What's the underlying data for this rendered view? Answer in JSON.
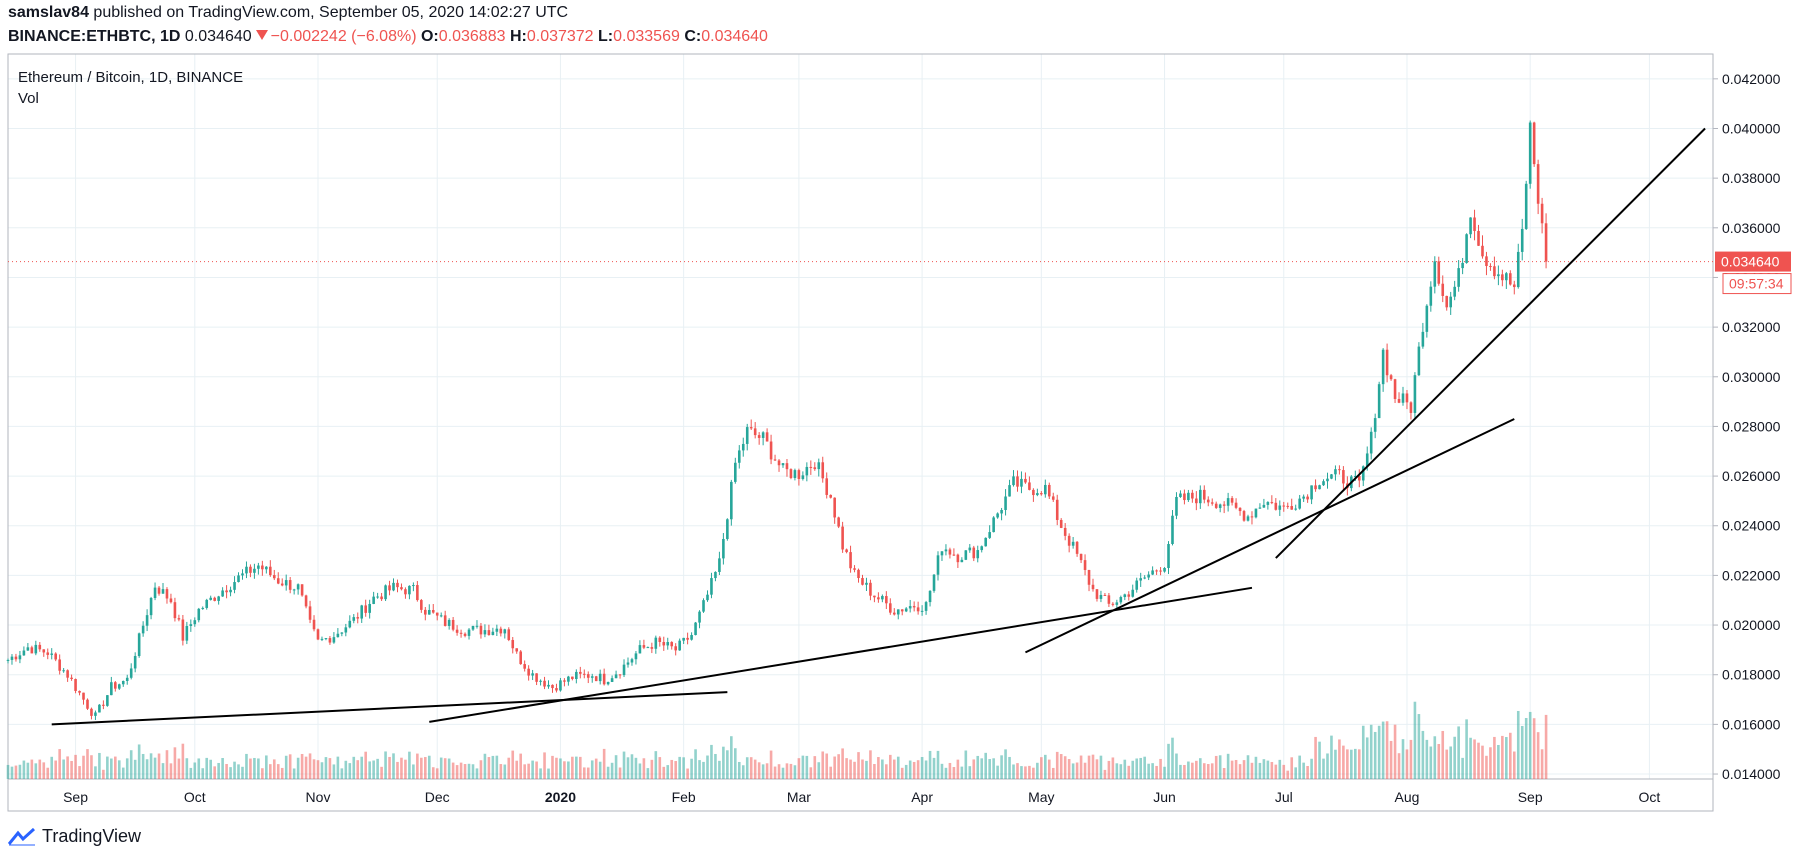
{
  "header": {
    "author": "samslav84",
    "published_text": "published on TradingView.com, September 05, 2020 14:02:27 UTC",
    "symbol": "BINANCE:ETHBTC, 1D",
    "last": "0.034640",
    "change": "−0.002242 (−6.08%)",
    "o_label": "O:",
    "o_value": "0.036883",
    "h_label": "H:",
    "h_value": "0.037372",
    "l_label": "L:",
    "l_value": "0.033569",
    "c_label": "C:",
    "c_value": "0.034640"
  },
  "legend": {
    "title": "Ethereum / Bitcoin, 1D, BINANCE",
    "vol": "Vol"
  },
  "footer": {
    "brand": "TradingView"
  },
  "colors": {
    "up": "#26a69a",
    "down": "#ef5350",
    "grid": "#e8f0f4",
    "text": "#131722"
  },
  "price_tag": {
    "value": "0.034640",
    "countdown": "09:57:34"
  },
  "chart_data": {
    "type": "candlestick",
    "interval": "1D",
    "x_range": [
      "2019-08-15",
      "2020-10-17"
    ],
    "y_range": [
      0.0138,
      0.043
    ],
    "y_ticks": [
      "0.042000",
      "0.040000",
      "0.038000",
      "0.036000",
      "0.034000",
      "0.032000",
      "0.030000",
      "0.028000",
      "0.026000",
      "0.024000",
      "0.022000",
      "0.020000",
      "0.018000",
      "0.016000",
      "0.014000"
    ],
    "y_tick_values": [
      0.042,
      0.04,
      0.038,
      0.036,
      0.034,
      0.032,
      0.03,
      0.028,
      0.026,
      0.024,
      0.022,
      0.02,
      0.018,
      0.016,
      0.014
    ],
    "x_ticks": [
      {
        "date": "2019-09-01",
        "label": "Sep",
        "bold": false
      },
      {
        "date": "2019-10-01",
        "label": "Oct",
        "bold": false
      },
      {
        "date": "2019-11-01",
        "label": "Nov",
        "bold": false
      },
      {
        "date": "2019-12-01",
        "label": "Dec",
        "bold": false
      },
      {
        "date": "2020-01-01",
        "label": "2020",
        "bold": true
      },
      {
        "date": "2020-02-01",
        "label": "Feb",
        "bold": false
      },
      {
        "date": "2020-03-01",
        "label": "Mar",
        "bold": false
      },
      {
        "date": "2020-04-01",
        "label": "Apr",
        "bold": false
      },
      {
        "date": "2020-05-01",
        "label": "May",
        "bold": false
      },
      {
        "date": "2020-06-01",
        "label": "Jun",
        "bold": false
      },
      {
        "date": "2020-07-01",
        "label": "Jul",
        "bold": false
      },
      {
        "date": "2020-08-01",
        "label": "Aug",
        "bold": false
      },
      {
        "date": "2020-09-01",
        "label": "Sep",
        "bold": false
      },
      {
        "date": "2020-10-01",
        "label": "Oct",
        "bold": false
      }
    ],
    "close_path": [
      [
        "2019-08-15",
        0.0186
      ],
      [
        "2019-08-20",
        0.0191
      ],
      [
        "2019-08-25",
        0.0189
      ],
      [
        "2019-08-30",
        0.018
      ],
      [
        "2019-09-03",
        0.017
      ],
      [
        "2019-09-06",
        0.0163
      ],
      [
        "2019-09-10",
        0.0175
      ],
      [
        "2019-09-14",
        0.0178
      ],
      [
        "2019-09-18",
        0.02
      ],
      [
        "2019-09-21",
        0.0216
      ],
      [
        "2019-09-25",
        0.021
      ],
      [
        "2019-09-28",
        0.0195
      ],
      [
        "2019-10-02",
        0.0206
      ],
      [
        "2019-10-07",
        0.0213
      ],
      [
        "2019-10-12",
        0.0219
      ],
      [
        "2019-10-17",
        0.0224
      ],
      [
        "2019-10-22",
        0.0218
      ],
      [
        "2019-10-27",
        0.0215
      ],
      [
        "2019-10-30",
        0.02
      ],
      [
        "2019-11-01",
        0.0193
      ],
      [
        "2019-11-05",
        0.0196
      ],
      [
        "2019-11-10",
        0.0202
      ],
      [
        "2019-11-15",
        0.0211
      ],
      [
        "2019-11-20",
        0.0215
      ],
      [
        "2019-11-25",
        0.0214
      ],
      [
        "2019-11-28",
        0.0206
      ],
      [
        "2019-12-03",
        0.0201
      ],
      [
        "2019-12-08",
        0.0198
      ],
      [
        "2019-12-13",
        0.0198
      ],
      [
        "2019-12-18",
        0.0199
      ],
      [
        "2019-12-21",
        0.0188
      ],
      [
        "2019-12-25",
        0.018
      ],
      [
        "2019-12-30",
        0.0175
      ],
      [
        "2020-01-04",
        0.0179
      ],
      [
        "2020-01-09",
        0.018
      ],
      [
        "2020-01-12",
        0.0178
      ],
      [
        "2020-01-16",
        0.0182
      ],
      [
        "2020-01-21",
        0.019
      ],
      [
        "2020-01-25",
        0.0193
      ],
      [
        "2020-01-30",
        0.019
      ],
      [
        "2020-02-03",
        0.0196
      ],
      [
        "2020-02-07",
        0.0212
      ],
      [
        "2020-02-10",
        0.0225
      ],
      [
        "2020-02-14",
        0.0265
      ],
      [
        "2020-02-17",
        0.0278
      ],
      [
        "2020-02-21",
        0.0275
      ],
      [
        "2020-02-26",
        0.0262
      ],
      [
        "2020-03-01",
        0.0261
      ],
      [
        "2020-03-05",
        0.0266
      ],
      [
        "2020-03-09",
        0.0252
      ],
      [
        "2020-03-12",
        0.0232
      ],
      [
        "2020-03-15",
        0.022
      ],
      [
        "2020-03-20",
        0.0212
      ],
      [
        "2020-03-25",
        0.0206
      ],
      [
        "2020-03-30",
        0.0208
      ],
      [
        "2020-04-02",
        0.0208
      ],
      [
        "2020-04-06",
        0.0232
      ],
      [
        "2020-04-10",
        0.0228
      ],
      [
        "2020-04-15",
        0.023
      ],
      [
        "2020-04-20",
        0.0245
      ],
      [
        "2020-04-24",
        0.0257
      ],
      [
        "2020-04-28",
        0.0255
      ],
      [
        "2020-05-02",
        0.0255
      ],
      [
        "2020-05-06",
        0.024
      ],
      [
        "2020-05-10",
        0.0228
      ],
      [
        "2020-05-14",
        0.0214
      ],
      [
        "2020-05-18",
        0.0208
      ],
      [
        "2020-05-22",
        0.0212
      ],
      [
        "2020-05-27",
        0.0219
      ],
      [
        "2020-06-01",
        0.0225
      ],
      [
        "2020-06-04",
        0.025
      ],
      [
        "2020-06-10",
        0.0252
      ],
      [
        "2020-06-16",
        0.0249
      ],
      [
        "2020-06-22",
        0.0244
      ],
      [
        "2020-06-26",
        0.025
      ],
      [
        "2020-07-01",
        0.0247
      ],
      [
        "2020-07-06",
        0.0252
      ],
      [
        "2020-07-10",
        0.0259
      ],
      [
        "2020-07-15",
        0.026
      ],
      [
        "2020-07-20",
        0.0256
      ],
      [
        "2020-07-23",
        0.0275
      ],
      [
        "2020-07-26",
        0.031
      ],
      [
        "2020-07-29",
        0.0292
      ],
      [
        "2020-08-02",
        0.0288
      ],
      [
        "2020-08-05",
        0.0322
      ],
      [
        "2020-08-08",
        0.0348
      ],
      [
        "2020-08-11",
        0.0328
      ],
      [
        "2020-08-14",
        0.034
      ],
      [
        "2020-08-17",
        0.0368
      ],
      [
        "2020-08-20",
        0.035
      ],
      [
        "2020-08-24",
        0.0342
      ],
      [
        "2020-08-28",
        0.0336
      ],
      [
        "2020-08-30",
        0.0358
      ],
      [
        "2020-09-01",
        0.04
      ],
      [
        "2020-09-03",
        0.0372
      ],
      [
        "2020-09-05",
        0.03464
      ]
    ],
    "trendlines": [
      {
        "from": [
          "2019-08-26",
          0.016
        ],
        "to": [
          "2020-02-12",
          0.0173
        ]
      },
      {
        "from": [
          "2019-11-29",
          0.0161
        ],
        "to": [
          "2020-06-23",
          0.0215
        ]
      },
      {
        "from": [
          "2020-04-27",
          0.0189
        ],
        "to": [
          "2020-08-28",
          0.0283
        ]
      },
      {
        "from": [
          "2020-06-29",
          0.0227
        ],
        "to": [
          "2020-10-15",
          0.04
        ]
      }
    ],
    "last_price": 0.03464,
    "countdown": "09:57:34"
  }
}
